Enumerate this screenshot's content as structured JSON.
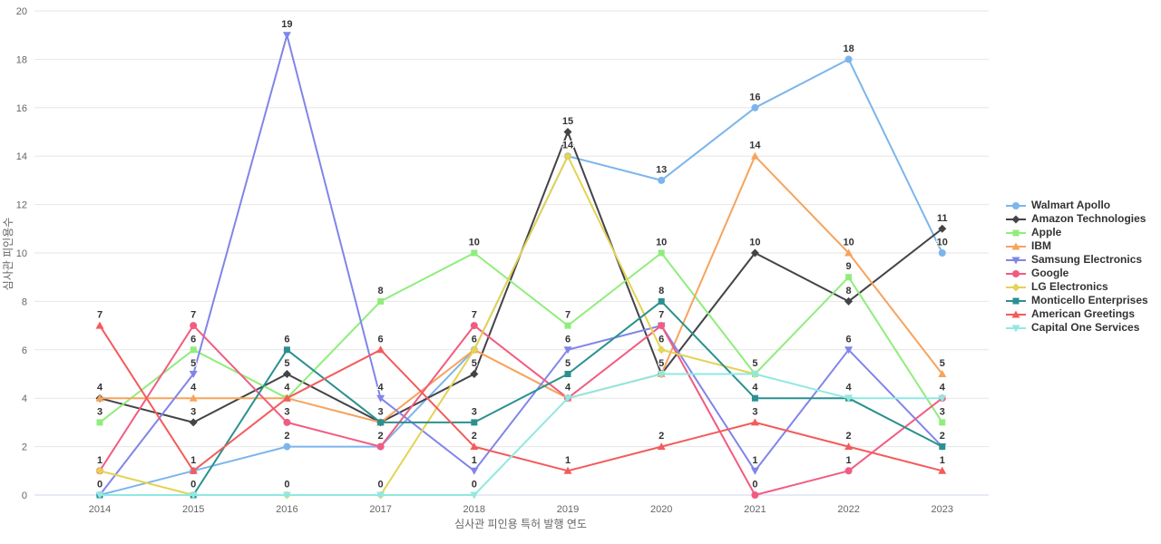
{
  "chart_data": {
    "type": "line",
    "x": [
      2014,
      2015,
      2016,
      2017,
      2018,
      2019,
      2020,
      2021,
      2022,
      2023
    ],
    "xlabel": "심사관 피인용 특허 발행 연도",
    "ylabel": "심사관 피인용수",
    "ylim": [
      0,
      20
    ],
    "ytick_step": 2,
    "grid": true,
    "legend_position": "right",
    "grid_color": "#e6e6e6",
    "axis_line_color": "#ccd6eb",
    "axis_text_color": "#666666",
    "data_label_color": "#333333",
    "series": [
      {
        "name": "Walmart Apollo",
        "color": "#7cb5ec",
        "marker": "circle",
        "values": [
          0,
          1,
          2,
          2,
          6,
          14,
          13,
          16,
          18,
          10
        ]
      },
      {
        "name": "Amazon Technologies",
        "color": "#434348",
        "marker": "diamond",
        "values": [
          4,
          3,
          5,
          3,
          5,
          15,
          5,
          10,
          8,
          11
        ]
      },
      {
        "name": "Apple",
        "color": "#90ed7d",
        "marker": "square",
        "values": [
          3,
          6,
          4,
          8,
          10,
          7,
          10,
          5,
          9,
          3
        ]
      },
      {
        "name": "IBM",
        "color": "#f7a35c",
        "marker": "triangle",
        "values": [
          4,
          4,
          4,
          3,
          6,
          4,
          5,
          14,
          10,
          5
        ]
      },
      {
        "name": "Samsung Electronics",
        "color": "#8085e9",
        "marker": "triangle-down",
        "values": [
          0,
          5,
          19,
          4,
          1,
          6,
          7,
          1,
          6,
          2
        ]
      },
      {
        "name": "Google",
        "color": "#f15c80",
        "marker": "circle",
        "values": [
          1,
          7,
          3,
          2,
          7,
          4,
          7,
          0,
          1,
          4
        ]
      },
      {
        "name": "LG Electronics",
        "color": "#e4d354",
        "marker": "diamond",
        "values": [
          1,
          0,
          0,
          0,
          6,
          14,
          6,
          5,
          null,
          null
        ]
      },
      {
        "name": "Monticello Enterprises",
        "color": "#2b908f",
        "marker": "square",
        "values": [
          0,
          0,
          6,
          3,
          3,
          5,
          8,
          4,
          4,
          2
        ]
      },
      {
        "name": "American Greetings",
        "color": "#f45b5b",
        "marker": "triangle",
        "values": [
          7,
          1,
          4,
          6,
          2,
          1,
          2,
          3,
          2,
          1
        ]
      },
      {
        "name": "Capital One Services",
        "color": "#91e8e1",
        "marker": "triangle-down",
        "values": [
          0,
          0,
          0,
          0,
          0,
          4,
          5,
          5,
          4,
          4
        ]
      }
    ]
  }
}
